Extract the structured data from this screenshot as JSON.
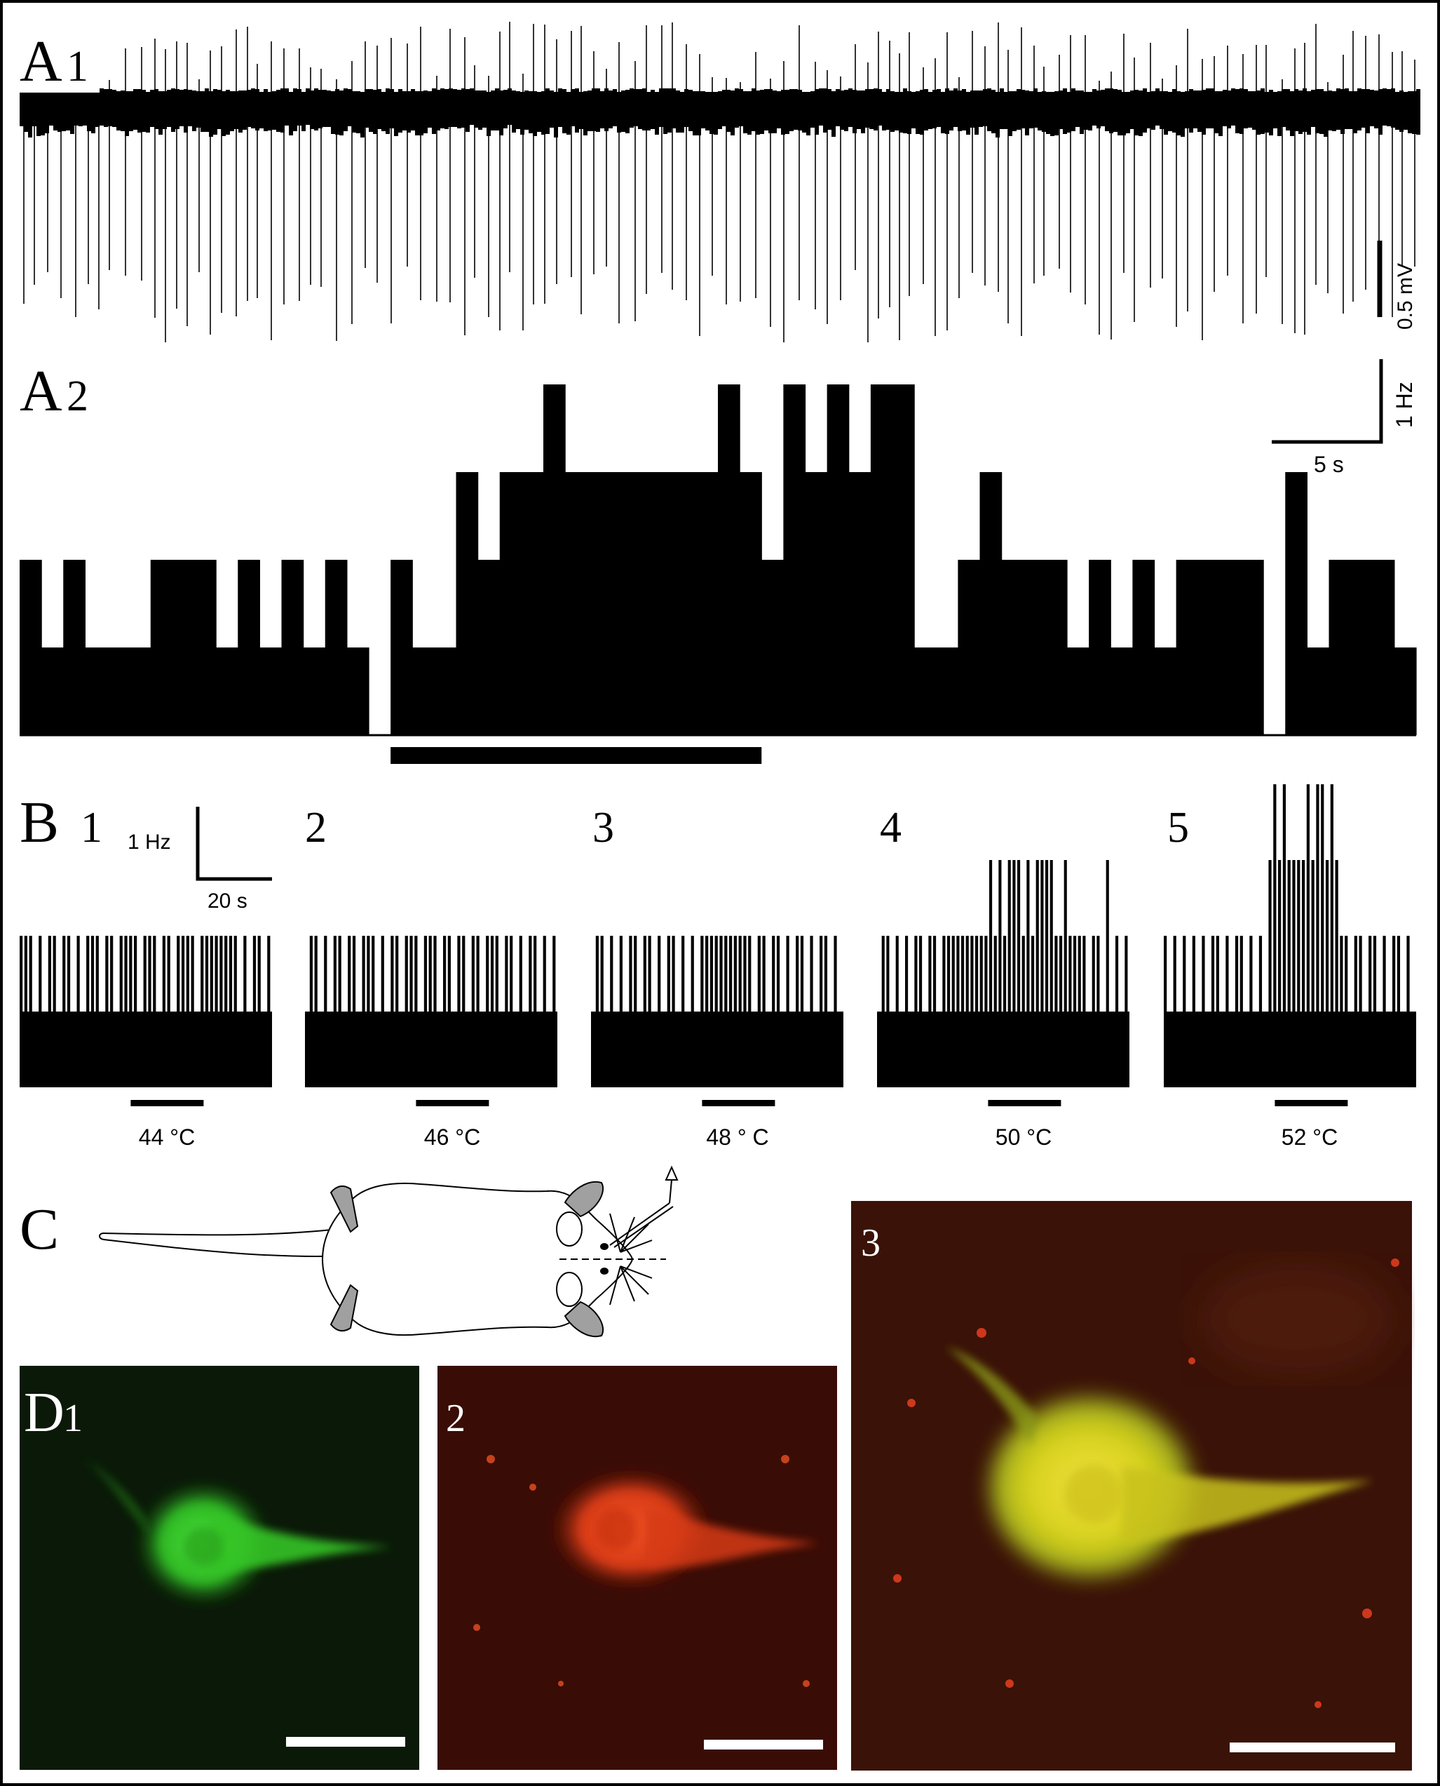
{
  "panels": {
    "A1": {
      "label": "A",
      "sub": "1",
      "scale_label": "0.5 mV"
    },
    "A2": {
      "label": "A",
      "sub": "2",
      "scale_y_label": "1 Hz",
      "scale_x_label": "5 s"
    },
    "B": {
      "label": "B",
      "scale_y_label": "1 Hz",
      "scale_x_label": "20 s",
      "subpanels": [
        {
          "number": "1",
          "temperature": "44 °C"
        },
        {
          "number": "2",
          "temperature": "46 °C"
        },
        {
          "number": "3",
          "temperature": "48 ° C"
        },
        {
          "number": "4",
          "temperature": "50 °C"
        },
        {
          "number": "5",
          "temperature": "52 °C"
        }
      ]
    },
    "C": {
      "label": "C",
      "image3_number": "3"
    },
    "D": {
      "label": "D",
      "sub": "1",
      "image2_number": "2"
    }
  },
  "colors": {
    "trace": "#000000",
    "green_neuron": "#3ccf2a",
    "red_neuron": "#e8401c",
    "merged_neuron": "#d8d21e",
    "green_bg": "#0b1a08",
    "red_bg": "#3a0c06",
    "merged_bg": "#3a1208",
    "paw_gray": "#a0a0a0"
  },
  "chart_data": [
    {
      "type": "bar",
      "title": "",
      "ylabel": "",
      "xlabel": "",
      "units": "Hz per 1 s bin",
      "stimulus_bar_bins": [
        17,
        34
      ],
      "values": [
        2,
        1,
        2,
        1,
        1,
        1,
        2,
        2,
        2,
        1,
        2,
        1,
        2,
        1,
        2,
        1,
        0,
        2,
        1,
        1,
        3,
        2,
        3,
        3,
        4,
        3,
        3,
        3,
        3,
        3,
        3,
        3,
        4,
        3,
        2,
        4,
        3,
        4,
        3,
        4,
        4,
        1,
        1,
        2,
        3,
        2,
        2,
        2,
        1,
        2,
        1,
        2,
        1,
        2,
        2,
        2,
        2,
        0,
        3,
        1,
        2,
        2,
        2,
        1
      ]
    },
    {
      "type": "bar",
      "title": "",
      "units": "Hz per bin",
      "subpanels": [
        {
          "temperature": "44 °C",
          "values": [
            2,
            2,
            2,
            1,
            2,
            1,
            2,
            2,
            1,
            2,
            2,
            1,
            2,
            1,
            2,
            2,
            2,
            1,
            2,
            2,
            1,
            2,
            2,
            2,
            2,
            1,
            2,
            2,
            2,
            1,
            2,
            2,
            1,
            2,
            2,
            2,
            2,
            1,
            2,
            2,
            2,
            2,
            2,
            2,
            2,
            2,
            1,
            2,
            1,
            2,
            2,
            1,
            2
          ]
        },
        {
          "temperature": "46 °C",
          "values": [
            1,
            2,
            2,
            1,
            2,
            1,
            2,
            2,
            1,
            2,
            2,
            1,
            2,
            2,
            2,
            1,
            2,
            1,
            2,
            2,
            1,
            2,
            2,
            2,
            1,
            2,
            2,
            2,
            1,
            2,
            2,
            1,
            2,
            2,
            1,
            2,
            2,
            1,
            2,
            2,
            2,
            1,
            2,
            2,
            1,
            2,
            1,
            2,
            2,
            1,
            2,
            1,
            2
          ]
        },
        {
          "temperature": "48 ° C",
          "values": [
            1,
            2,
            2,
            1,
            2,
            1,
            2,
            1,
            2,
            2,
            1,
            2,
            2,
            1,
            2,
            1,
            2,
            2,
            1,
            2,
            1,
            2,
            1,
            2,
            2,
            2,
            2,
            2,
            2,
            2,
            2,
            2,
            2,
            2,
            1,
            2,
            2,
            1,
            2,
            2,
            1,
            2,
            1,
            2,
            2,
            1,
            2,
            1,
            2,
            2,
            1,
            2,
            1
          ]
        },
        {
          "temperature": "50 °C",
          "values": [
            1,
            2,
            2,
            1,
            2,
            1,
            2,
            1,
            2,
            2,
            1,
            2,
            2,
            1,
            2,
            2,
            2,
            2,
            2,
            2,
            2,
            2,
            2,
            2,
            3,
            2,
            3,
            2,
            3,
            3,
            3,
            2,
            3,
            2,
            3,
            3,
            3,
            3,
            2,
            2,
            3,
            2,
            2,
            2,
            2,
            1,
            2,
            2,
            1,
            3,
            1,
            2,
            1,
            2
          ]
        },
        {
          "temperature": "52 °C",
          "values": [
            2,
            1,
            2,
            1,
            2,
            1,
            2,
            1,
            2,
            1,
            2,
            2,
            1,
            2,
            1,
            2,
            2,
            1,
            2,
            0,
            2,
            1,
            3,
            4,
            3,
            4,
            3,
            3,
            3,
            3,
            4,
            3,
            4,
            4,
            3,
            4,
            3,
            2,
            2,
            1,
            2,
            2,
            1,
            2,
            2,
            1,
            2,
            1,
            2,
            2,
            1,
            2,
            1
          ]
        }
      ]
    }
  ]
}
